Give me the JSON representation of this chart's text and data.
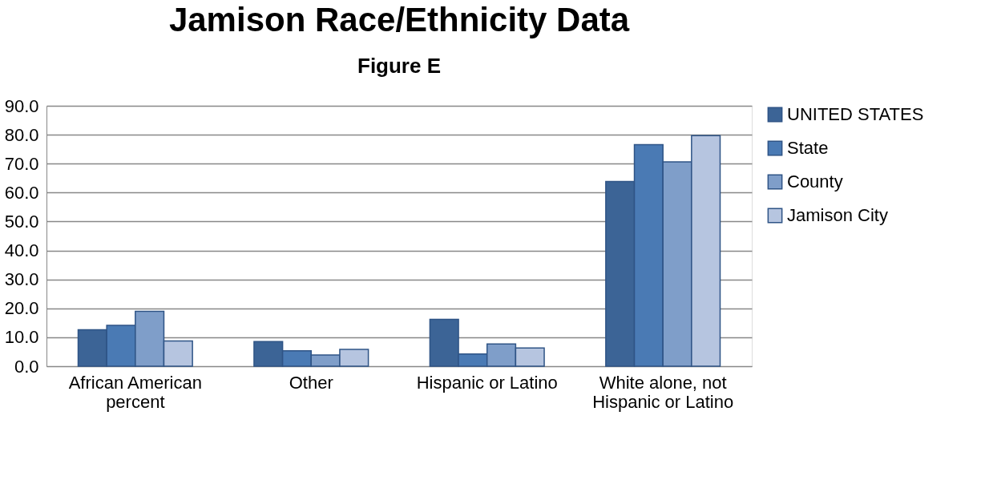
{
  "chart_data": {
    "type": "bar",
    "title": "Jamison Race/Ethnicity Data",
    "subtitle": "Figure E",
    "categories": [
      "African American percent",
      "Other",
      "Hispanic or Latino",
      "White alone, not Hispanic or Latino"
    ],
    "series": [
      {
        "name": "UNITED STATES",
        "color": "#3c6496",
        "values": [
          12.6,
          8.5,
          16.2,
          63.8
        ]
      },
      {
        "name": "State",
        "color": "#4a7ab4",
        "values": [
          14.1,
          5.3,
          4.2,
          76.6
        ]
      },
      {
        "name": "County",
        "color": "#7f9ec9",
        "values": [
          19.0,
          3.9,
          7.7,
          70.6
        ]
      },
      {
        "name": "Jamison City",
        "color": "#b6c5e0",
        "values": [
          8.7,
          5.8,
          6.3,
          79.7
        ]
      }
    ],
    "ylim": [
      0,
      90
    ],
    "yticks": [
      {
        "value": 0,
        "label": "0.0"
      },
      {
        "value": 10,
        "label": "10.0"
      },
      {
        "value": 20,
        "label": "20.0"
      },
      {
        "value": 30,
        "label": "30.0"
      },
      {
        "value": 40,
        "label": "40.0"
      },
      {
        "value": 50,
        "label": "50.0"
      },
      {
        "value": 60,
        "label": "60.0"
      },
      {
        "value": 70,
        "label": "70.0"
      },
      {
        "value": 80,
        "label": "80.0"
      },
      {
        "value": 90,
        "label": "90.0"
      }
    ],
    "grid": "y",
    "legend": "right"
  }
}
